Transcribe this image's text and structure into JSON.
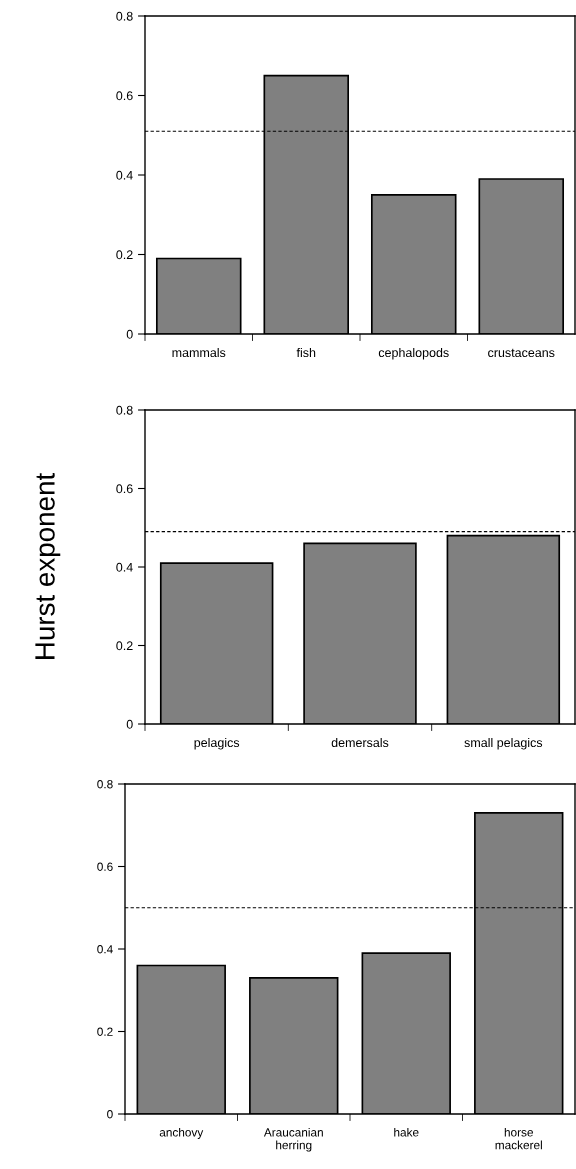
{
  "chart_data": [
    {
      "type": "bar",
      "categories": [
        "mammals",
        "fish",
        "cephalopods",
        "crustaceans"
      ],
      "values": [
        0.19,
        0.65,
        0.35,
        0.39
      ],
      "color": "#808080",
      "ylim": [
        0,
        0.8
      ],
      "yticks": [
        0,
        0.2,
        0.4,
        0.6,
        0.8
      ],
      "grid": false,
      "ref_lines": [
        {
          "axis": "y",
          "value": 0.51,
          "color": "#000000",
          "line_style": "dashed"
        }
      ]
    },
    {
      "type": "bar",
      "categories": [
        "pelagics",
        "demersals",
        "small pelagics"
      ],
      "values": [
        0.41,
        0.46,
        0.48
      ],
      "color": "#808080",
      "ylim": [
        0,
        0.8
      ],
      "yticks": [
        0,
        0.2,
        0.4,
        0.6,
        0.8
      ],
      "grid": false,
      "ylabel": "Hurst exponent",
      "ref_lines": [
        {
          "axis": "y",
          "value": 0.49,
          "color": "#000000",
          "line_style": "dashed"
        }
      ]
    },
    {
      "type": "bar",
      "categories": [
        "anchovy",
        "Araucanian\nherring",
        "hake",
        "horse\nmackerel"
      ],
      "values": [
        0.36,
        0.33,
        0.39,
        0.73
      ],
      "color": "#808080",
      "ylim": [
        0,
        0.8
      ],
      "yticks": [
        0,
        0.2,
        0.4,
        0.6,
        0.8
      ],
      "grid": false,
      "ref_lines": [
        {
          "axis": "y",
          "value": 0.5,
          "color": "#000000",
          "line_style": "dashed"
        }
      ]
    }
  ]
}
